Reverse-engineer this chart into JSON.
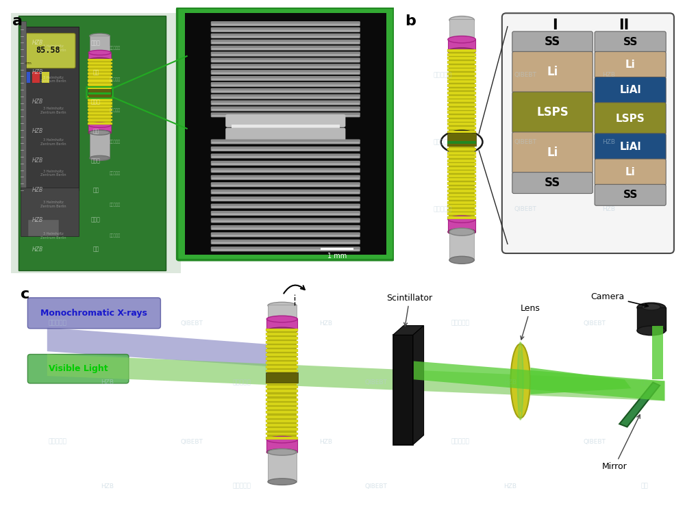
{
  "background_color": "#ffffff",
  "watermark_color": "#b8ccd8",
  "layer_I": [
    "SS",
    "Li",
    "LSPS",
    "Li",
    "SS"
  ],
  "layer_II": [
    "SS",
    "Li",
    "LiAl",
    "LSPS",
    "LiAl",
    "Li",
    "SS"
  ],
  "layer_I_colors": [
    "#a8a8a8",
    "#c4a882",
    "#8a8a28",
    "#c4a882",
    "#a8a8a8"
  ],
  "layer_II_colors": [
    "#a8a8a8",
    "#c4a882",
    "#1e4e82",
    "#8a8a28",
    "#1e4e82",
    "#c4a882",
    "#a8a8a8"
  ],
  "layer_I_text_colors": [
    "#000000",
    "#ffffff",
    "#ffffff",
    "#ffffff",
    "#000000"
  ],
  "layer_II_text_colors": [
    "#000000",
    "#ffffff",
    "#ffffff",
    "#ffffff",
    "#ffffff",
    "#ffffff",
    "#000000"
  ],
  "scale_bar_label": "1 mm",
  "monochromatic_label": "Monochromatic X-rays",
  "visible_light_label": "Visible Light",
  "scintillator_label": "Scintillator",
  "lens_label": "Lens",
  "camera_label": "Camera",
  "mirror_label": "Mirror",
  "battery_yellow": "#d8d818",
  "battery_gray": "#909090",
  "battery_pink": "#cc44aa",
  "xray_beam_color": "#9090cc",
  "green_beam_color": "#44cc44"
}
